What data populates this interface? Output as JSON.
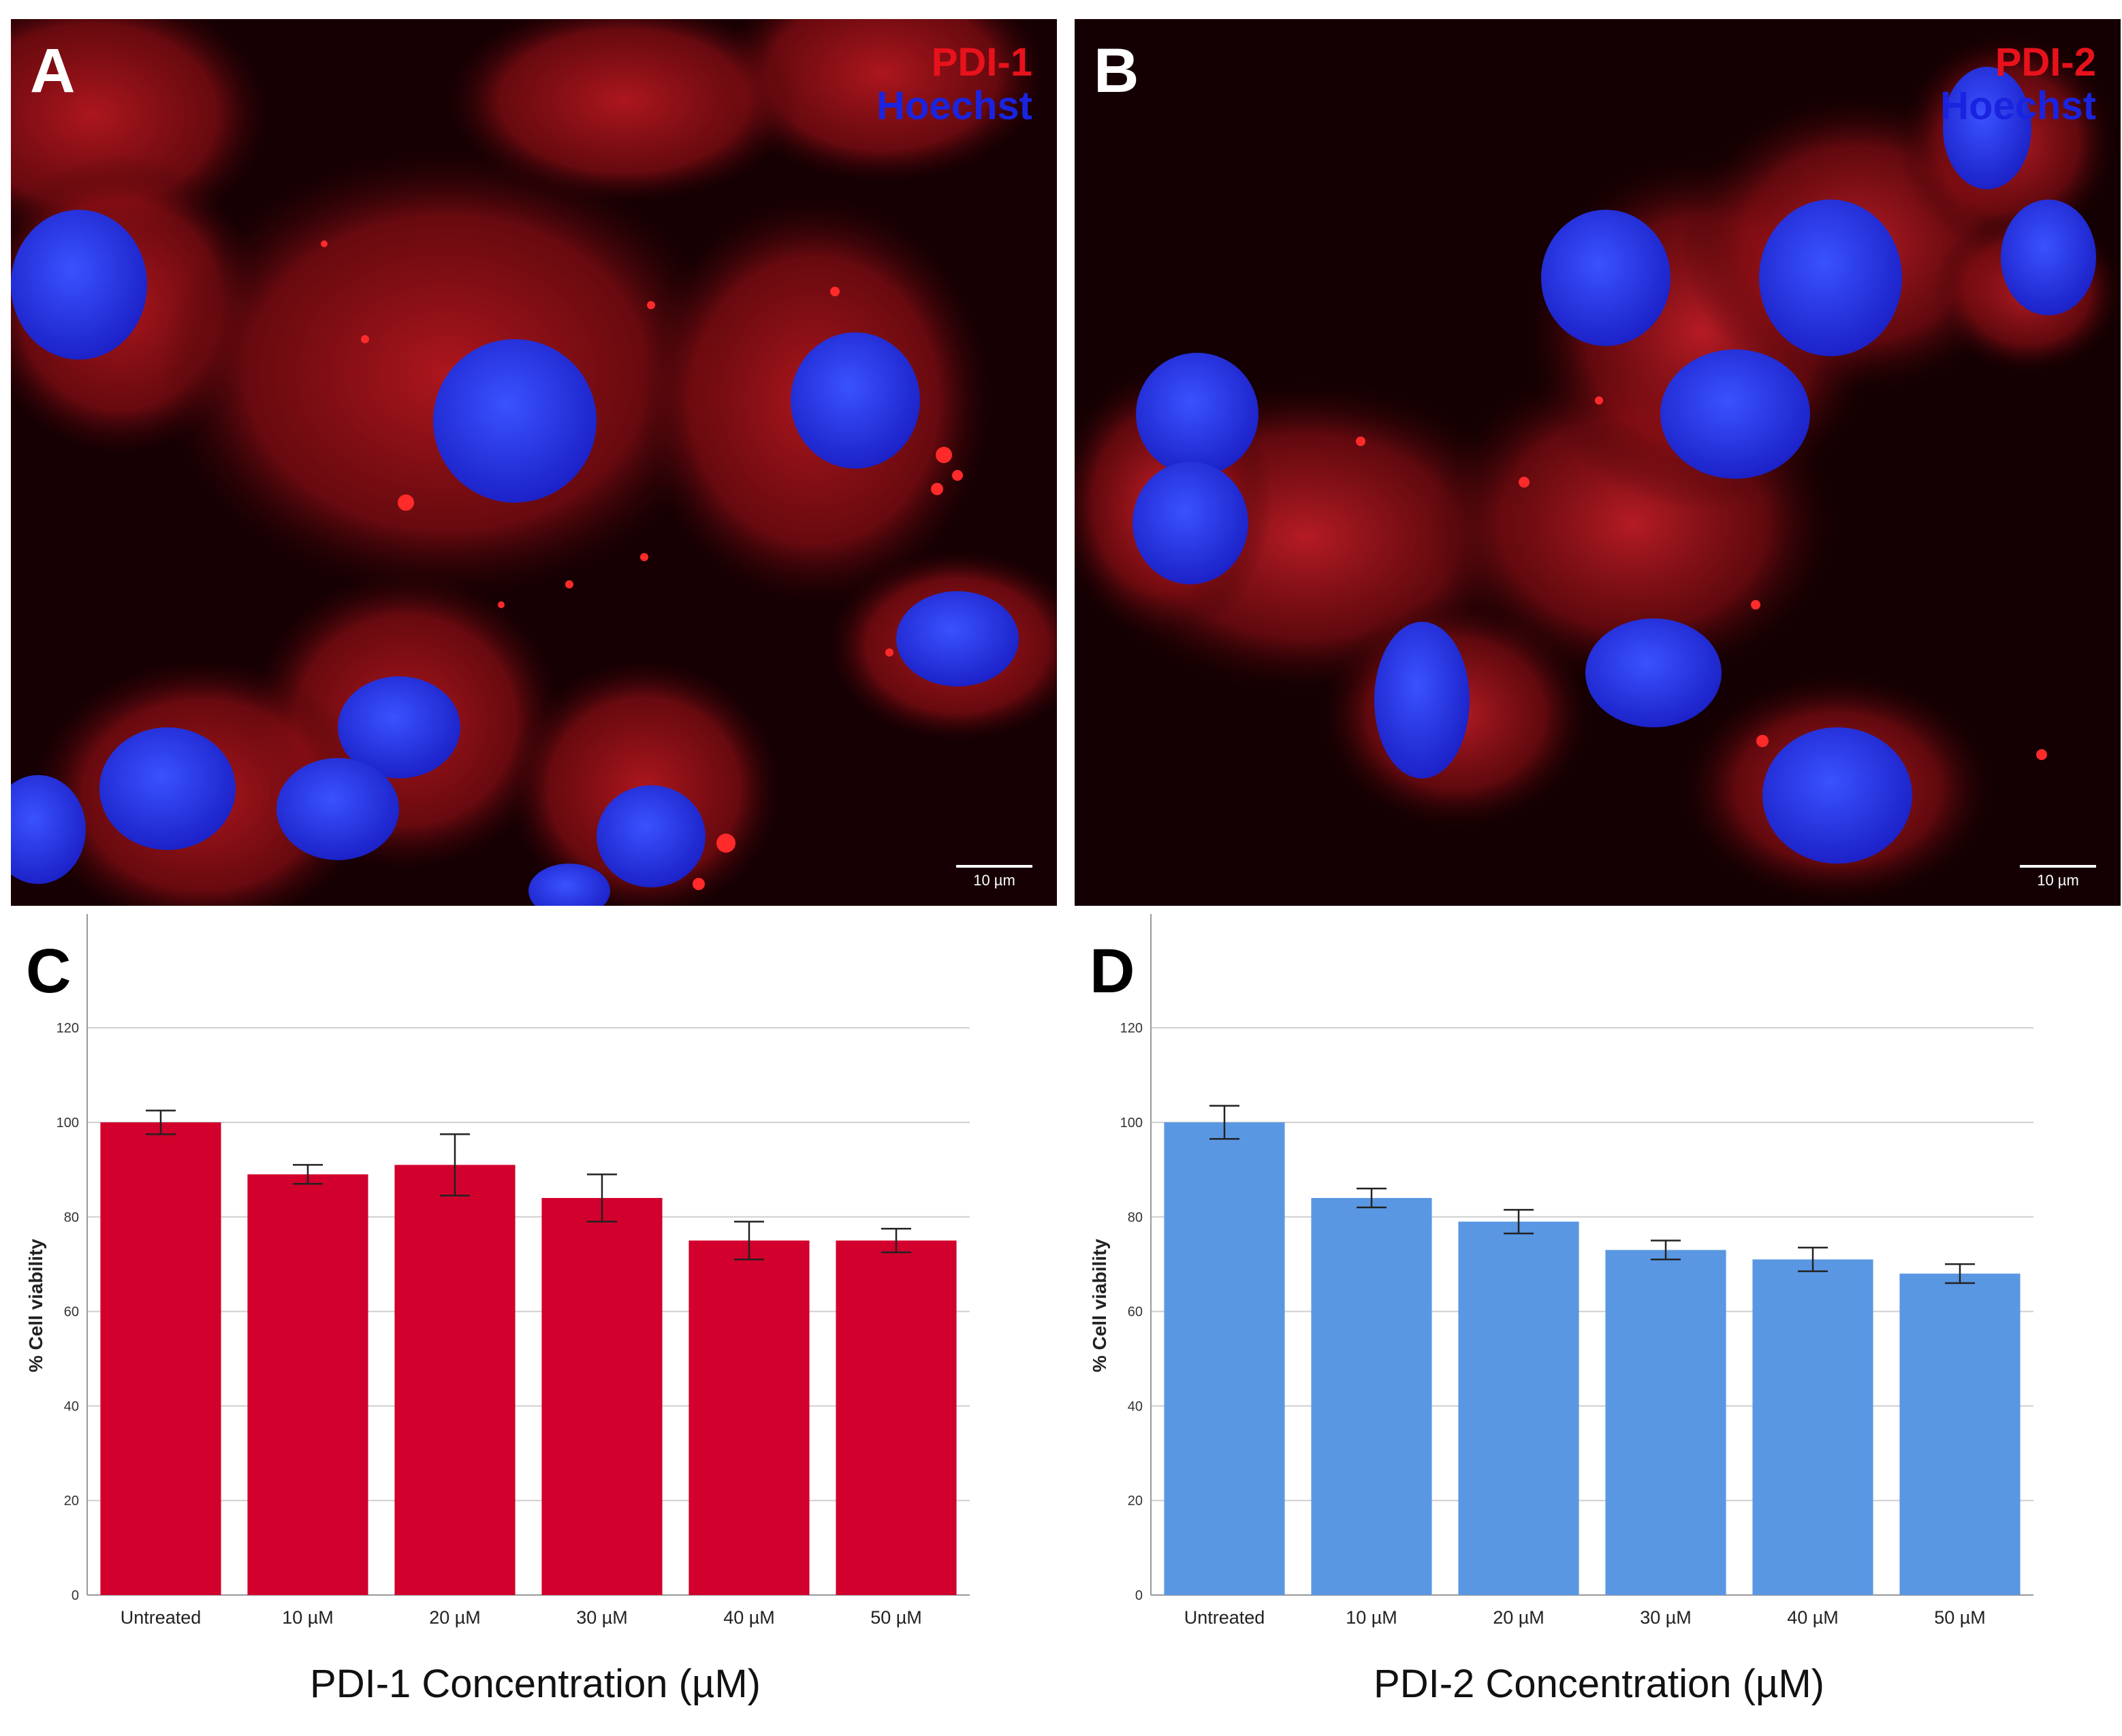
{
  "panels": {
    "a": {
      "letter": "A",
      "stain_label": "PDI-1",
      "nucleus_label": "Hoechst",
      "scale_label": "10 µm"
    },
    "b": {
      "letter": "B",
      "stain_label": "PDI-2",
      "nucleus_label": "Hoechst",
      "scale_label": "10 µm"
    },
    "c": {
      "letter": "C",
      "xtitle": "PDI-1 Concentration (µM)"
    },
    "d": {
      "letter": "D",
      "xtitle": "PDI-2 Concentration (µM)"
    }
  },
  "colors": {
    "stain_red": "#e8121c",
    "nucleus_blue": "#1a24e0",
    "bar_c": "#d1002c",
    "bar_d": "#5a97e2"
  },
  "chart_data": [
    {
      "type": "bar",
      "panel": "C",
      "categories": [
        "Untreated",
        "10 µM",
        "20 µM",
        "30 µM",
        "40 µM",
        "50 µM"
      ],
      "values": [
        100,
        89,
        91,
        84,
        75,
        75
      ],
      "errors": [
        2.5,
        2.0,
        6.5,
        5.0,
        4.0,
        2.5
      ],
      "ylabel": "% Cell viability",
      "xlabel": "PDI-1 Concentration (µM)",
      "yticks": [
        0,
        20,
        40,
        60,
        80,
        100,
        120
      ],
      "ylim": [
        0,
        134
      ],
      "grid": true,
      "color": "#d1002c"
    },
    {
      "type": "bar",
      "panel": "D",
      "categories": [
        "Untreated",
        "10 µM",
        "20 µM",
        "30 µM",
        "40 µM",
        "50 µM"
      ],
      "values": [
        100,
        84,
        79,
        73,
        71,
        68
      ],
      "errors": [
        3.5,
        2.0,
        2.5,
        2.0,
        2.5,
        2.0
      ],
      "ylabel": "% Cell viability",
      "xlabel": "PDI-2 Concentration (µM)",
      "yticks": [
        0,
        20,
        40,
        60,
        80,
        100,
        120
      ],
      "ylim": [
        0,
        134
      ],
      "grid": true,
      "color": "#5a97e2"
    }
  ]
}
